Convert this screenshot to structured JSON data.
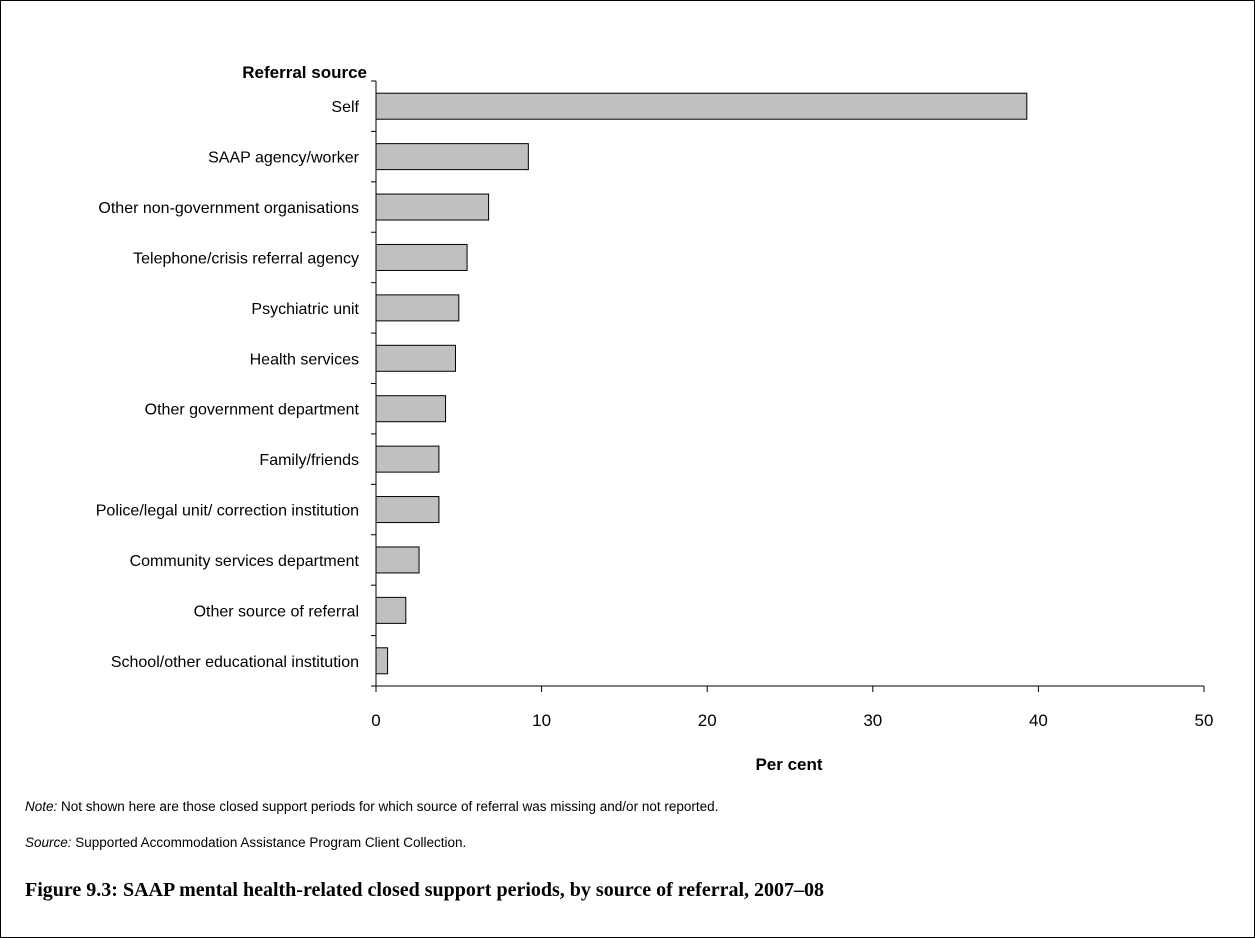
{
  "chart_data": {
    "type": "bar",
    "orientation": "horizontal",
    "group_title": "Referral source",
    "categories": [
      "Self",
      "SAAP agency/worker",
      "Other non-government organisations",
      "Telephone/crisis referral agency",
      "Psychiatric unit",
      "Health services",
      "Other government department",
      "Family/friends",
      "Police/legal unit/ correction institution",
      "Community services department",
      "Other source of referral",
      "School/other educational institution"
    ],
    "values": [
      39.3,
      9.2,
      6.8,
      5.5,
      5.0,
      4.8,
      4.2,
      3.8,
      3.8,
      2.6,
      1.8,
      0.7
    ],
    "xlabel": "Per cent",
    "xlim": [
      0,
      50
    ],
    "xticks": [
      0,
      10,
      20,
      30,
      40,
      50
    ],
    "bar_color": "#c0c0c0",
    "grid": false
  },
  "notes": {
    "note_label": "Note:",
    "note_text": " Not shown here are those closed support periods for which source of referral was missing and/or not reported.",
    "source_label": "Source:",
    "source_text": " Supported Accommodation Assistance Program Client Collection."
  },
  "caption": "Figure 9.3: SAAP mental health-related closed support periods, by source of referral, 2007–08"
}
